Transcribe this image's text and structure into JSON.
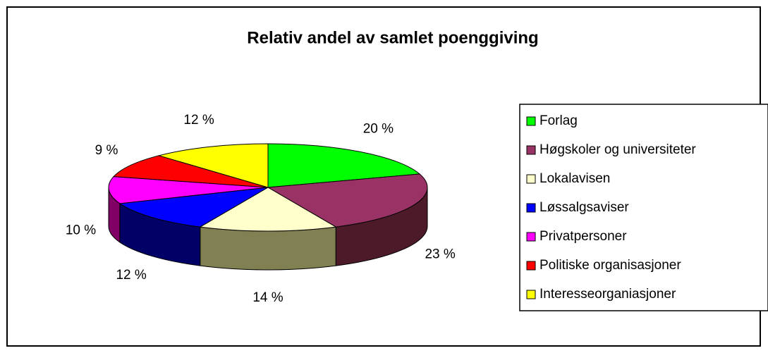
{
  "chart_data": {
    "type": "pie",
    "title": "Relativ andel av samlet poenggiving",
    "categories": [
      "Forlag",
      "Høgskoler og universiteter",
      "Lokalavisen",
      "Løssalgsaviser",
      "Privatpersoner",
      "Politiske organisasjoner",
      "Interesseorganiasjoner"
    ],
    "values": [
      20,
      23,
      14,
      12,
      10,
      9,
      12
    ],
    "value_labels": [
      "20 %",
      "23 %",
      "14 %",
      "12 %",
      "10 %",
      "9 %",
      "12 %"
    ],
    "colors": [
      "#00ff00",
      "#993366",
      "#ffffcc",
      "#0000ff",
      "#ff00ff",
      "#ff0000",
      "#ffff00"
    ],
    "legend": "right"
  }
}
